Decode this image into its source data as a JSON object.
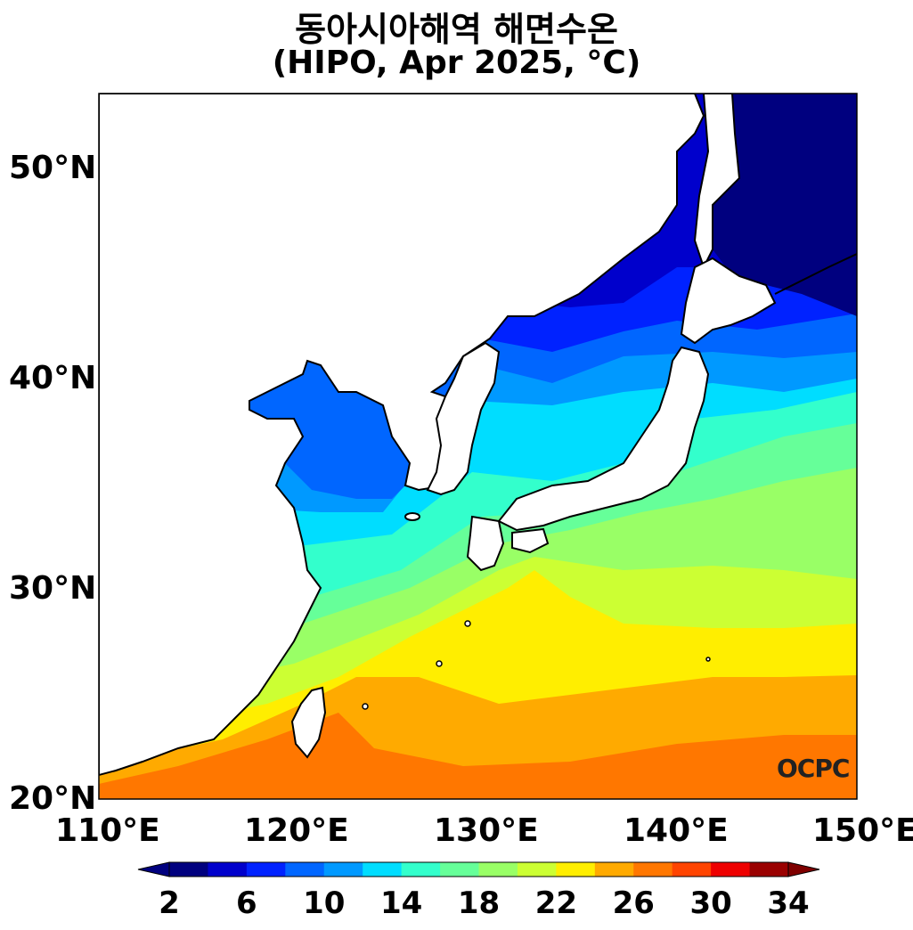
{
  "title": {
    "line1": "동아시아해역 해면수온",
    "line2": "(HIPO, Apr 2025, °C)"
  },
  "map": {
    "type": "sea-surface-temperature",
    "lon_range": [
      110,
      150
    ],
    "lat_range": [
      20,
      53.5
    ],
    "lon_ticks": [
      "110°E",
      "120°E",
      "130°E",
      "140°E",
      "150°E"
    ],
    "lat_ticks": [
      "50°N",
      "40°N",
      "30°N",
      "20°N"
    ]
  },
  "colorbar": {
    "labels": [
      "2",
      "6",
      "10",
      "14",
      "18",
      "22",
      "26",
      "30",
      "34"
    ],
    "colors": [
      "#00007f",
      "#0000cc",
      "#0022ff",
      "#0066ff",
      "#0099ff",
      "#00ddff",
      "#33ffcc",
      "#66ff99",
      "#99ff66",
      "#ccff33",
      "#ffee00",
      "#ffaa00",
      "#ff7700",
      "#ff4400",
      "#ee0000",
      "#9a0000"
    ],
    "over_color": "#7f0000",
    "under_color": "#00007f"
  },
  "watermark": {
    "text": "OCPC"
  }
}
